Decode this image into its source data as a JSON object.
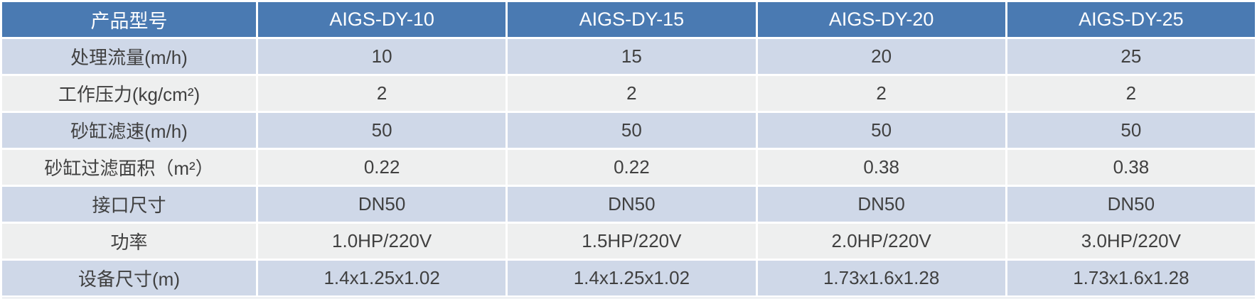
{
  "table": {
    "header": [
      "产品型号",
      "AIGS-DY-10",
      "AIGS-DY-15",
      "AIGS-DY-20",
      "AIGS-DY-25"
    ],
    "rows": [
      {
        "label": "处理流量(m/h)",
        "values": [
          "10",
          "15",
          "20",
          "25"
        ]
      },
      {
        "label": "工作压力(kg/cm²)",
        "values": [
          "2",
          "2",
          "2",
          "2"
        ]
      },
      {
        "label": "砂缸滤速(m/h)",
        "values": [
          "50",
          "50",
          "50",
          "50"
        ]
      },
      {
        "label": "砂缸过滤面积（m²）",
        "values": [
          "0.22",
          "0.22",
          "0.38",
          "0.38"
        ]
      },
      {
        "label": "接口尺寸",
        "values": [
          "DN50",
          "DN50",
          "DN50",
          "DN50"
        ]
      },
      {
        "label": "功率",
        "values": [
          "1.0HP/220V",
          "1.5HP/220V",
          "2.0HP/220V",
          "3.0HP/220V"
        ]
      },
      {
        "label": "设备尺寸(m)",
        "values": [
          "1.4x1.25x1.02",
          "1.4x1.25x1.02",
          "1.73x1.6x1.28",
          "1.73x1.6x1.28"
        ]
      }
    ],
    "colors": {
      "header_bg": "#4a7ab2",
      "row_blue": "#cfd8e8",
      "row_grey": "#eeefef",
      "header_text": "#ffffff",
      "body_text": "#404040"
    }
  }
}
